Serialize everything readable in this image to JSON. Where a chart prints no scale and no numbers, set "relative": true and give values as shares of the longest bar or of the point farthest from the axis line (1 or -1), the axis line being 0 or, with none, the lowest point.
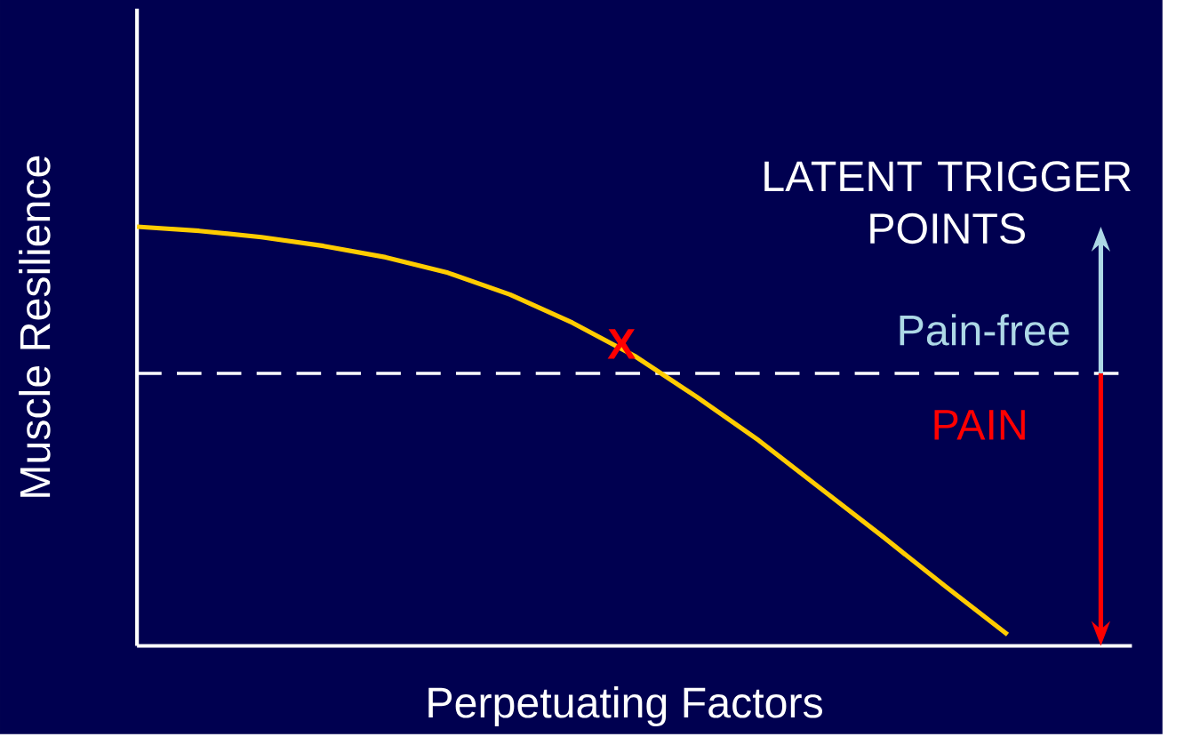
{
  "chart_data": {
    "type": "line",
    "relative": true,
    "xlabel": "Perpetuating Factors",
    "ylabel": "Muscle Resilience",
    "categories": [
      null,
      null,
      null,
      null,
      null,
      null,
      null,
      null,
      null,
      null,
      null,
      null,
      null,
      null,
      null,
      null,
      null
    ],
    "series": [
      {
        "color": "#ffcc00",
        "values": [
          1.0,
          0.99,
          0.975,
          0.954,
          0.927,
          0.89,
          0.838,
          0.771,
          0.692,
          0.594,
          0.49,
          0.375,
          0.26,
          0.142,
          0.027,
          null,
          null
        ]
      }
    ],
    "ref_lines": [
      {
        "axis": "y",
        "value": 0.65,
        "color": "#ffffff",
        "line_style": "dashed"
      }
    ],
    "annotations": [
      "LATENT TRIGGER POINTS",
      "Pain-free",
      "PAIN",
      "X"
    ]
  }
}
